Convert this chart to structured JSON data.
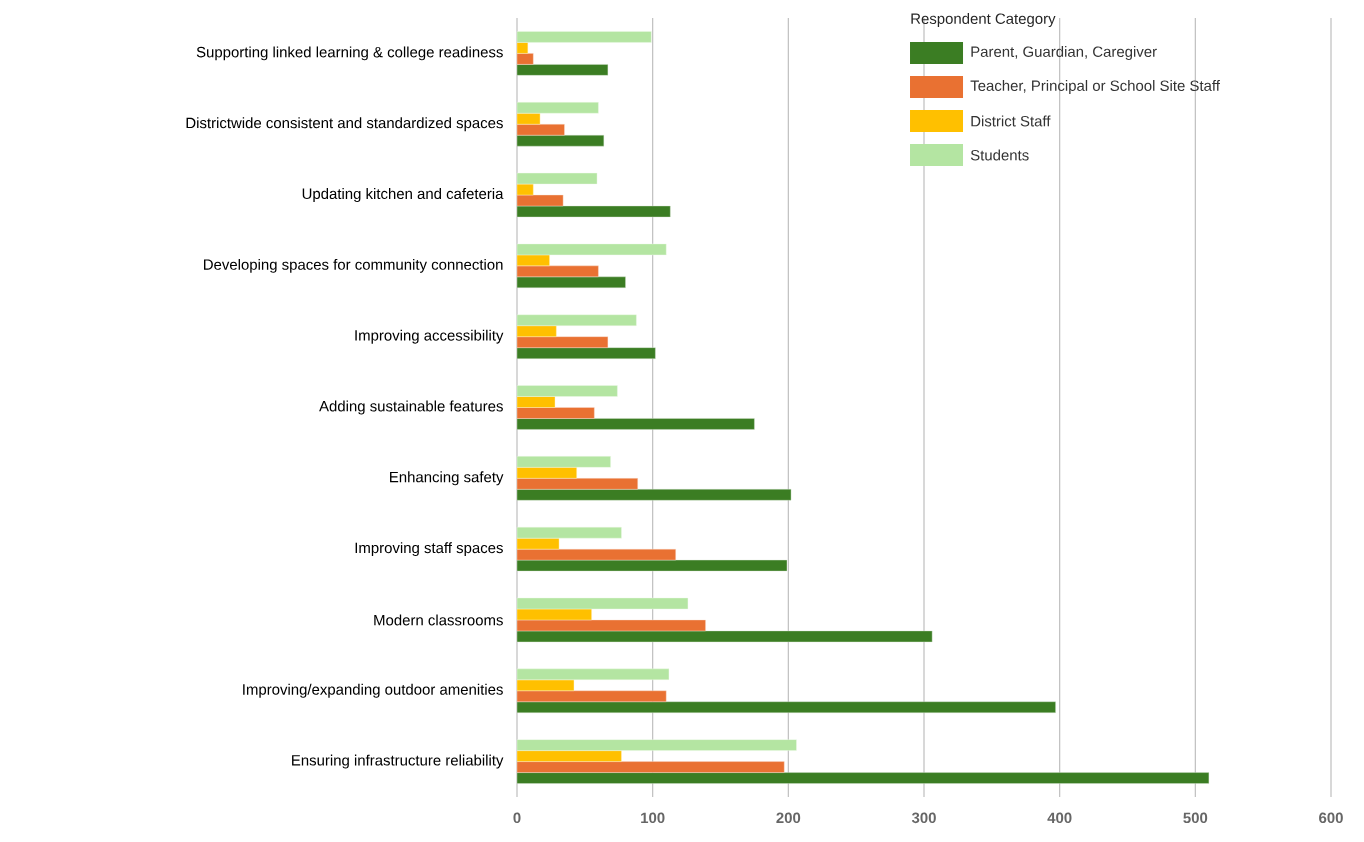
{
  "chart_data": {
    "type": "bar",
    "orientation": "horizontal",
    "categories": [
      "Supporting linked learning & college readiness",
      "Districtwide consistent and standardized spaces",
      "Updating kitchen and cafeteria",
      "Developing spaces for community connection",
      "Improving accessibility",
      "Adding sustainable features",
      "Enhancing safety",
      "Improving staff spaces",
      "Modern classrooms",
      "Improving/expanding outdoor amenities",
      "Ensuring infrastructure reliability"
    ],
    "legend_title": "Respondent Category",
    "series": [
      {
        "name": "Parent, Guardian, Caregiver",
        "color": "#3b7d23",
        "values": [
          67,
          64,
          113,
          80,
          102,
          175,
          202,
          199,
          306,
          397,
          510
        ]
      },
      {
        "name": "Teacher, Principal or School Site Staff",
        "color": "#e97132",
        "values": [
          12,
          35,
          34,
          60,
          67,
          57,
          89,
          117,
          139,
          110,
          197
        ]
      },
      {
        "name": "District Staff",
        "color": "#ffc000",
        "values": [
          8,
          17,
          12,
          24,
          29,
          28,
          44,
          31,
          55,
          42,
          77
        ]
      },
      {
        "name": "Students",
        "color": "#b4e5a2",
        "values": [
          99,
          60,
          59,
          110,
          88,
          74,
          69,
          77,
          126,
          112,
          206
        ]
      }
    ],
    "xlim": [
      0,
      600
    ],
    "xticks": [
      0,
      100,
      200,
      300,
      400,
      500,
      600
    ],
    "grid": "x",
    "legend": "top right"
  }
}
